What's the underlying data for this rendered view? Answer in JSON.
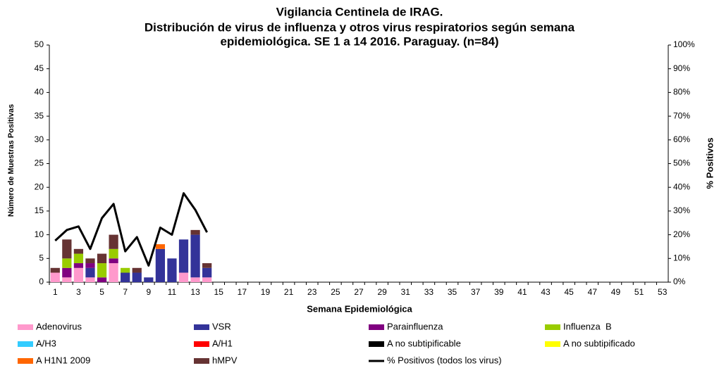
{
  "chart_data": {
    "type": "bar",
    "stacked": true,
    "title": [
      "Vigilancia Centinela de IRAG.",
      "Distribución de virus de influenza y otros virus respiratorios según semana",
      "epidemiológica. SE 1 a 14 2016. Paraguay. (n=84)"
    ],
    "x_label": "Semana Epidemiológica",
    "y_label": "Número de Muestras Positivas",
    "y2_label": "% Positivos",
    "categories": [
      "1",
      null,
      "3",
      null,
      "5",
      null,
      "7",
      null,
      "9",
      null,
      "11",
      null,
      "13",
      null,
      "15",
      null,
      "17",
      null,
      "19",
      null,
      "21",
      null,
      "23",
      null,
      "25",
      null,
      "27",
      null,
      "29",
      null,
      "31",
      null,
      "33",
      null,
      "35",
      null,
      "37",
      null,
      "39",
      null,
      "41",
      null,
      "43",
      null,
      "45",
      null,
      "47",
      null,
      "49",
      null,
      "51",
      null,
      "53"
    ],
    "ylim": [
      0,
      50
    ],
    "yticks": [
      0,
      5,
      10,
      15,
      20,
      25,
      30,
      35,
      40,
      45,
      50
    ],
    "y2lim": [
      0,
      100
    ],
    "y2ticks": [
      {
        "value": 0,
        "label": "0%"
      },
      {
        "value": 10,
        "label": "10%"
      },
      {
        "value": 20,
        "label": "20%"
      },
      {
        "value": 30,
        "label": "30%"
      },
      {
        "value": 40,
        "label": "40%"
      },
      {
        "value": 50,
        "label": "50%"
      },
      {
        "value": 60,
        "label": "60%"
      },
      {
        "value": 70,
        "label": "70%"
      },
      {
        "value": 80,
        "label": "80%"
      },
      {
        "value": 90,
        "label": "90%"
      },
      {
        "value": 100,
        "label": "100%"
      }
    ],
    "grid": false,
    "series": [
      {
        "name": "Adenovirus",
        "color": "#ff99cc",
        "values": [
          2,
          1,
          3,
          1,
          null,
          4,
          null,
          null,
          null,
          null,
          null,
          2,
          1,
          1,
          null,
          null,
          null,
          null,
          null,
          null,
          null,
          null,
          null,
          null,
          null,
          null,
          null,
          null,
          null,
          null,
          null,
          null,
          null,
          null,
          null,
          null,
          null,
          null,
          null,
          null,
          null,
          null,
          null,
          null,
          null,
          null,
          null,
          null,
          null,
          null,
          null,
          null,
          null
        ]
      },
      {
        "name": "VSR",
        "color": "#333399",
        "values": [
          null,
          null,
          null,
          2,
          null,
          null,
          2,
          2,
          1,
          7,
          5,
          7,
          9,
          2,
          null,
          null,
          null,
          null,
          null,
          null,
          null,
          null,
          null,
          null,
          null,
          null,
          null,
          null,
          null,
          null,
          null,
          null,
          null,
          null,
          null,
          null,
          null,
          null,
          null,
          null,
          null,
          null,
          null,
          null,
          null,
          null,
          null,
          null,
          null,
          null,
          null,
          null,
          null
        ]
      },
      {
        "name": "Parainfluenza",
        "color": "#800080",
        "values": [
          null,
          2,
          1,
          1,
          1,
          1,
          null,
          null,
          null,
          null,
          null,
          null,
          null,
          null,
          null,
          null,
          null,
          null,
          null,
          null,
          null,
          null,
          null,
          null,
          null,
          null,
          null,
          null,
          null,
          null,
          null,
          null,
          null,
          null,
          null,
          null,
          null,
          null,
          null,
          null,
          null,
          null,
          null,
          null,
          null,
          null,
          null,
          null,
          null,
          null,
          null,
          null,
          null
        ]
      },
      {
        "name": "Influenza  B",
        "color": "#99cc00",
        "values": [
          null,
          2,
          2,
          null,
          3,
          2,
          1,
          null,
          null,
          null,
          null,
          null,
          null,
          null,
          null,
          null,
          null,
          null,
          null,
          null,
          null,
          null,
          null,
          null,
          null,
          null,
          null,
          null,
          null,
          null,
          null,
          null,
          null,
          null,
          null,
          null,
          null,
          null,
          null,
          null,
          null,
          null,
          null,
          null,
          null,
          null,
          null,
          null,
          null,
          null,
          null,
          null,
          null
        ]
      },
      {
        "name": "A/H3",
        "color": "#33ccff",
        "values": [
          null,
          null,
          null,
          null,
          null,
          null,
          null,
          null,
          null,
          null,
          null,
          null,
          null,
          null,
          null,
          null,
          null,
          null,
          null,
          null,
          null,
          null,
          null,
          null,
          null,
          null,
          null,
          null,
          null,
          null,
          null,
          null,
          null,
          null,
          null,
          null,
          null,
          null,
          null,
          null,
          null,
          null,
          null,
          null,
          null,
          null,
          null,
          null,
          null,
          null,
          null,
          null,
          null
        ]
      },
      {
        "name": "A/H1",
        "color": "#ff0000",
        "values": [
          null,
          null,
          null,
          null,
          null,
          null,
          null,
          null,
          null,
          null,
          null,
          null,
          null,
          null,
          null,
          null,
          null,
          null,
          null,
          null,
          null,
          null,
          null,
          null,
          null,
          null,
          null,
          null,
          null,
          null,
          null,
          null,
          null,
          null,
          null,
          null,
          null,
          null,
          null,
          null,
          null,
          null,
          null,
          null,
          null,
          null,
          null,
          null,
          null,
          null,
          null,
          null,
          null
        ]
      },
      {
        "name": "A no subtipificable",
        "color": "#000000",
        "values": [
          null,
          null,
          null,
          null,
          null,
          null,
          null,
          null,
          null,
          null,
          null,
          null,
          null,
          null,
          null,
          null,
          null,
          null,
          null,
          null,
          null,
          null,
          null,
          null,
          null,
          null,
          null,
          null,
          null,
          null,
          null,
          null,
          null,
          null,
          null,
          null,
          null,
          null,
          null,
          null,
          null,
          null,
          null,
          null,
          null,
          null,
          null,
          null,
          null,
          null,
          null,
          null,
          null
        ]
      },
      {
        "name": "A no subtipificado",
        "color": "#ffff00",
        "values": [
          null,
          null,
          null,
          null,
          null,
          null,
          null,
          null,
          null,
          null,
          null,
          null,
          null,
          null,
          null,
          null,
          null,
          null,
          null,
          null,
          null,
          null,
          null,
          null,
          null,
          null,
          null,
          null,
          null,
          null,
          null,
          null,
          null,
          null,
          null,
          null,
          null,
          null,
          null,
          null,
          null,
          null,
          null,
          null,
          null,
          null,
          null,
          null,
          null,
          null,
          null,
          null,
          null
        ]
      },
      {
        "name": "A H1N1 2009",
        "color": "#ff6600",
        "values": [
          null,
          null,
          null,
          null,
          null,
          null,
          null,
          null,
          null,
          1,
          null,
          null,
          null,
          null,
          null,
          null,
          null,
          null,
          null,
          null,
          null,
          null,
          null,
          null,
          null,
          null,
          null,
          null,
          null,
          null,
          null,
          null,
          null,
          null,
          null,
          null,
          null,
          null,
          null,
          null,
          null,
          null,
          null,
          null,
          null,
          null,
          null,
          null,
          null,
          null,
          null,
          null,
          null
        ]
      },
      {
        "name": "hMPV",
        "color": "#663333",
        "values": [
          1,
          4,
          1,
          1,
          2,
          3,
          null,
          1,
          null,
          null,
          null,
          null,
          1,
          1,
          null,
          null,
          null,
          null,
          null,
          null,
          null,
          null,
          null,
          null,
          null,
          null,
          null,
          null,
          null,
          null,
          null,
          null,
          null,
          null,
          null,
          null,
          null,
          null,
          null,
          null,
          null,
          null,
          null,
          null,
          null,
          null,
          null,
          null,
          null,
          null,
          null,
          null,
          null
        ]
      },
      {
        "name": "% Positivos (todos los virus)",
        "color": "#000000",
        "type": "line",
        "axis": "y2",
        "values": [
          17.5,
          22,
          23.5,
          14,
          27,
          33,
          13,
          19,
          7,
          23,
          20,
          37.5,
          30.5,
          21,
          null,
          null,
          null,
          null,
          null,
          null,
          null,
          null,
          null,
          null,
          null,
          null,
          null,
          null,
          null,
          null,
          null,
          null,
          null,
          null,
          null,
          null,
          null,
          null,
          null,
          null,
          null,
          null,
          null,
          null,
          null,
          null,
          null,
          null,
          null,
          null,
          null,
          null,
          null
        ]
      }
    ]
  }
}
